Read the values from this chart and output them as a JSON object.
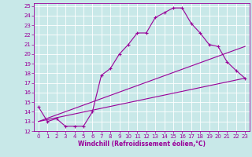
{
  "xlabel": "Windchill (Refroidissement éolien,°C)",
  "bg_color": "#c8e8e8",
  "line_color": "#990099",
  "grid_color": "#ffffff",
  "xlim": [
    -0.5,
    23.5
  ],
  "ylim": [
    12,
    25.3
  ],
  "xticks": [
    0,
    1,
    2,
    3,
    4,
    5,
    6,
    7,
    8,
    9,
    10,
    11,
    12,
    13,
    14,
    15,
    16,
    17,
    18,
    19,
    20,
    21,
    22,
    23
  ],
  "yticks": [
    12,
    13,
    14,
    15,
    16,
    17,
    18,
    19,
    20,
    21,
    22,
    23,
    24,
    25
  ],
  "line1_x": [
    0,
    1,
    2,
    3,
    4,
    5,
    6,
    7,
    8,
    9,
    10,
    11,
    12,
    13,
    14,
    15,
    16,
    17,
    18,
    19,
    20,
    21,
    22,
    23
  ],
  "line1_y": [
    14.5,
    13.0,
    13.3,
    12.5,
    12.5,
    12.5,
    14.0,
    17.8,
    18.5,
    20.0,
    21.0,
    22.2,
    22.2,
    23.8,
    24.3,
    24.8,
    24.8,
    23.2,
    22.2,
    21.0,
    20.8,
    19.2,
    18.3,
    17.5
  ],
  "line2_x": [
    0,
    23
  ],
  "line2_y": [
    13.0,
    17.5
  ],
  "line3_x": [
    0,
    23
  ],
  "line3_y": [
    13.0,
    20.8
  ]
}
